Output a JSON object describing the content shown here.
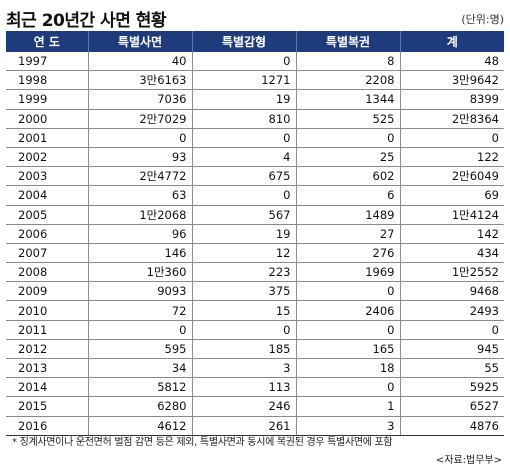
{
  "title": "최근 20년간 사면 현황",
  "unit": "(단위:명)",
  "headers": [
    "연 도",
    "특별사면",
    "특별감형",
    "특별복권",
    "계"
  ],
  "rows": [
    [
      "1997",
      "40",
      "0",
      "8",
      "48"
    ],
    [
      "1998",
      "3만6163",
      "1271",
      "2208",
      "3만9642"
    ],
    [
      "1999",
      "7036",
      "19",
      "1344",
      "8399"
    ],
    [
      "2000",
      "2만7029",
      "810",
      "525",
      "2만8364"
    ],
    [
      "2001",
      "0",
      "0",
      "0",
      "0"
    ],
    [
      "2002",
      "93",
      "4",
      "25",
      "122"
    ],
    [
      "2003",
      "2만4772",
      "675",
      "602",
      "2만6049"
    ],
    [
      "2004",
      "63",
      "0",
      "6",
      "69"
    ],
    [
      "2005",
      "1만2068",
      "567",
      "1489",
      "1만4124"
    ],
    [
      "2006",
      "96",
      "19",
      "27",
      "142"
    ],
    [
      "2007",
      "146",
      "12",
      "276",
      "434"
    ],
    [
      "2008",
      "1만360",
      "223",
      "1969",
      "1만2552"
    ],
    [
      "2009",
      "9093",
      "375",
      "0",
      "9468"
    ],
    [
      "2010",
      "72",
      "15",
      "2406",
      "2493"
    ],
    [
      "2011",
      "0",
      "0",
      "0",
      "0"
    ],
    [
      "2012",
      "595",
      "185",
      "165",
      "945"
    ],
    [
      "2013",
      "34",
      "3",
      "18",
      "55"
    ],
    [
      "2014",
      "5812",
      "113",
      "0",
      "5925"
    ],
    [
      "2015",
      "6280",
      "246",
      "1",
      "6527"
    ],
    [
      "2016",
      "4612",
      "261",
      "3",
      "4876"
    ]
  ],
  "note": "* 징계사면이나 운전면허 벌점 감면 등은 제외, 특별사면과 동시에 복권된 경우 특별사면에 포함",
  "source": "<자료:법무부>",
  "colors": {
    "header_bg": "#1e3b7b",
    "header_text": "#ffffff",
    "grid": "#8a8a8a"
  }
}
